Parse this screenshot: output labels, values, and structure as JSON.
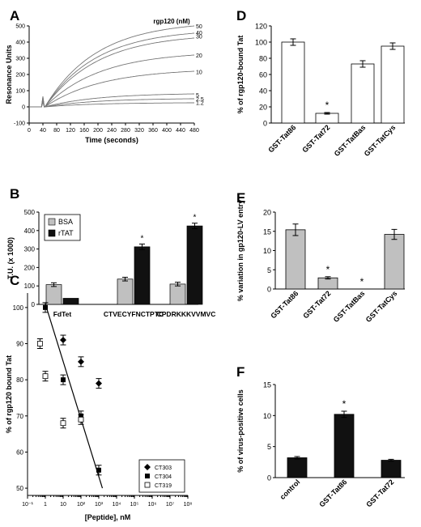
{
  "chart_data": [
    {
      "panel": "A",
      "type": "line",
      "xlabel": "Time (seconds)",
      "ylabel": "Resonance Units",
      "xlim": [
        0,
        480
      ],
      "ylim": [
        -100,
        500
      ],
      "xticks": [
        0,
        40,
        80,
        120,
        160,
        200,
        240,
        280,
        320,
        360,
        400,
        440,
        480
      ],
      "yticks": [
        -100,
        0,
        100,
        200,
        300,
        400,
        500
      ],
      "legend_title": "rgp120 (nM)",
      "series": [
        {
          "name": "50",
          "final": 500
        },
        {
          "name": "40",
          "final": 455
        },
        {
          "name": "30",
          "final": 425
        },
        {
          "name": "20",
          "final": 320
        },
        {
          "name": "10",
          "final": 220
        },
        {
          "name": "5",
          "final": 80
        },
        {
          "name": "2.5",
          "final": 50
        },
        {
          "name": "1.2",
          "final": 25
        }
      ]
    },
    {
      "panel": "B",
      "type": "bar",
      "ylabel": "T.U. (x 1000)",
      "ylim": [
        0,
        500
      ],
      "yticks": [
        0,
        100,
        200,
        300,
        400,
        500
      ],
      "categories": [
        "FdTet",
        "CTVECYFNCTPTC",
        "CPDRKKKVVMVC"
      ],
      "series": [
        {
          "name": "BSA",
          "color": "#c0c0c0",
          "values": [
            107,
            137,
            110
          ],
          "errors": [
            10,
            10,
            10
          ]
        },
        {
          "name": "rTAT",
          "color": "#111111",
          "values": [
            33,
            312,
            425
          ],
          "errors": [
            0,
            15,
            15
          ]
        }
      ],
      "significance": [
        "",
        "*",
        "*"
      ],
      "legend_position": "top-left"
    },
    {
      "panel": "C",
      "type": "scatter",
      "xlabel": "[Peptide], nM",
      "ylabel": "% of rgp120 bound Tat",
      "xscale": "log",
      "xlim": [
        0.1,
        100000000
      ],
      "ylim": [
        48,
        104
      ],
      "xticks": [
        "10⁻¹",
        "1",
        "10",
        "10²",
        "10³",
        "10⁴",
        "10⁵",
        "10⁶",
        "10⁷",
        "10⁸"
      ],
      "yticks": [
        50,
        60,
        70,
        80,
        90,
        100
      ],
      "series": [
        {
          "name": "CT303",
          "marker": "diamond",
          "x": [
            10,
            100,
            1000
          ],
          "y": [
            91,
            85,
            79
          ]
        },
        {
          "name": "CT304",
          "marker": "filled-square",
          "x": [
            1,
            10,
            100,
            1000
          ],
          "y": [
            100,
            80,
            70,
            55
          ]
        },
        {
          "name": "CT319",
          "marker": "open-square",
          "x": [
            0.5,
            1,
            10,
            100
          ],
          "y": [
            90,
            81,
            68,
            69
          ]
        }
      ],
      "fit_line": {
        "x": [
          1,
          1600
        ],
        "y": [
          101,
          50
        ]
      },
      "legend_position": "bottom-right"
    },
    {
      "panel": "D",
      "type": "bar",
      "ylabel": "% of rgp120-bound Tat",
      "ylim": [
        0,
        120
      ],
      "yticks": [
        0,
        20,
        40,
        60,
        80,
        100,
        120
      ],
      "categories": [
        "GST-Tat86",
        "GST-Tat72",
        "GST-TatBas",
        "GST-TatCys"
      ],
      "values": [
        100,
        12,
        73,
        95
      ],
      "errors": [
        4,
        1,
        4,
        4
      ],
      "significance": [
        "",
        "*",
        "",
        ""
      ],
      "color": "#ffffff"
    },
    {
      "panel": "E",
      "type": "bar",
      "ylabel": "% variation in gp120-LV entry",
      "ylim": [
        0,
        20
      ],
      "yticks": [
        0,
        5,
        10,
        15,
        20
      ],
      "categories": [
        "GST-Tat86",
        "GST-Tat72",
        "GST-TatBas",
        "GST-TatCys"
      ],
      "values": [
        15.4,
        2.9,
        0,
        14.2
      ],
      "errors": [
        1.5,
        0.3,
        0,
        1.3
      ],
      "significance": [
        "",
        "*",
        "*",
        ""
      ],
      "color": "#c0c0c0"
    },
    {
      "panel": "F",
      "type": "bar",
      "ylabel": "% of virus-positive cells",
      "ylim": [
        0,
        15
      ],
      "yticks": [
        0,
        5,
        10,
        15
      ],
      "categories": [
        "control",
        "GST-Tat86",
        "GST-Tat72"
      ],
      "values": [
        3.2,
        10.2,
        2.8
      ],
      "errors": [
        0.2,
        0.5,
        0.15
      ],
      "significance": [
        "",
        "*",
        ""
      ],
      "color": "#111111"
    }
  ]
}
